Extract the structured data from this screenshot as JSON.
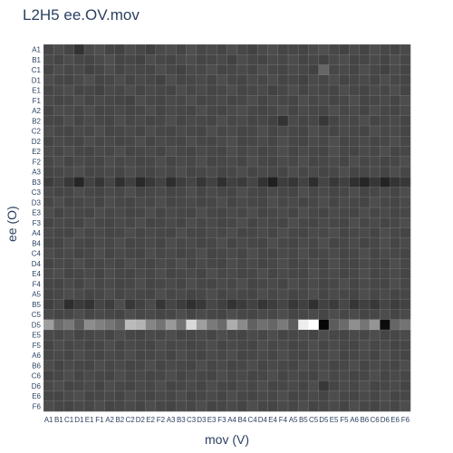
{
  "chart_data": {
    "type": "heatmap",
    "title": "L2H5 ee.OV.mov",
    "xlabel": "mov (V)",
    "ylabel": "ee (O)",
    "labels": [
      "A1",
      "B1",
      "C1",
      "D1",
      "E1",
      "F1",
      "A2",
      "B2",
      "C2",
      "D2",
      "E2",
      "F2",
      "A3",
      "B3",
      "C3",
      "D3",
      "E3",
      "F3",
      "A4",
      "B4",
      "C4",
      "D4",
      "E4",
      "F4",
      "A5",
      "B5",
      "C5",
      "D5",
      "E5",
      "F5",
      "A6",
      "B6",
      "C6",
      "D6",
      "E6",
      "F6"
    ],
    "value_range": [
      0,
      1
    ],
    "colorscale": "greys (black = 0, white = 1)",
    "grid": true,
    "values": [
      [
        0.28,
        0.3,
        0.27,
        0.2,
        0.29,
        0.31,
        0.27,
        0.26,
        0.3,
        0.28,
        0.25,
        0.29,
        0.3,
        0.27,
        0.31,
        0.28,
        0.29,
        0.27,
        0.3,
        0.28,
        0.26,
        0.29,
        0.3,
        0.27,
        0.28,
        0.27,
        0.29,
        0.31,
        0.28,
        0.26,
        0.29,
        0.27,
        0.3,
        0.28,
        0.27,
        0.29
      ],
      [
        0.29,
        0.27,
        0.3,
        0.28,
        0.27,
        0.29,
        0.31,
        0.27,
        0.28,
        0.26,
        0.3,
        0.28,
        0.27,
        0.29,
        0.3,
        0.27,
        0.28,
        0.29,
        0.26,
        0.3,
        0.28,
        0.27,
        0.29,
        0.28,
        0.3,
        0.27,
        0.28,
        0.26,
        0.29,
        0.3,
        0.27,
        0.28,
        0.29,
        0.27,
        0.3,
        0.28
      ],
      [
        0.27,
        0.3,
        0.28,
        0.29,
        0.26,
        0.28,
        0.3,
        0.27,
        0.29,
        0.28,
        0.27,
        0.3,
        0.28,
        0.26,
        0.29,
        0.28,
        0.3,
        0.27,
        0.28,
        0.29,
        0.27,
        0.3,
        0.28,
        0.27,
        0.29,
        0.28,
        0.26,
        0.4,
        0.28,
        0.29,
        0.27,
        0.3,
        0.28,
        0.26,
        0.29,
        0.27
      ],
      [
        0.3,
        0.28,
        0.27,
        0.29,
        0.31,
        0.27,
        0.28,
        0.3,
        0.27,
        0.29,
        0.28,
        0.26,
        0.3,
        0.27,
        0.28,
        0.29,
        0.27,
        0.3,
        0.28,
        0.27,
        0.29,
        0.28,
        0.3,
        0.27,
        0.28,
        0.26,
        0.29,
        0.28,
        0.3,
        0.27,
        0.28,
        0.29,
        0.27,
        0.3,
        0.28,
        0.27
      ],
      [
        0.28,
        0.29,
        0.3,
        0.27,
        0.28,
        0.26,
        0.29,
        0.28,
        0.3,
        0.27,
        0.29,
        0.28,
        0.27,
        0.3,
        0.28,
        0.29,
        0.27,
        0.28,
        0.3,
        0.27,
        0.28,
        0.29,
        0.26,
        0.28,
        0.3,
        0.27,
        0.29,
        0.28,
        0.27,
        0.3,
        0.28,
        0.27,
        0.29,
        0.28,
        0.3,
        0.27
      ],
      [
        0.29,
        0.27,
        0.28,
        0.3,
        0.27,
        0.29,
        0.28,
        0.27,
        0.26,
        0.3,
        0.28,
        0.27,
        0.29,
        0.28,
        0.3,
        0.27,
        0.28,
        0.29,
        0.27,
        0.28,
        0.3,
        0.27,
        0.29,
        0.28,
        0.27,
        0.3,
        0.28,
        0.29,
        0.27,
        0.28,
        0.3,
        0.27,
        0.28,
        0.29,
        0.27,
        0.3
      ],
      [
        0.27,
        0.3,
        0.29,
        0.28,
        0.3,
        0.27,
        0.28,
        0.29,
        0.27,
        0.28,
        0.3,
        0.27,
        0.29,
        0.28,
        0.27,
        0.3,
        0.28,
        0.27,
        0.29,
        0.3,
        0.28,
        0.27,
        0.28,
        0.3,
        0.27,
        0.29,
        0.28,
        0.27,
        0.3,
        0.28,
        0.29,
        0.27,
        0.3,
        0.28,
        0.27,
        0.29
      ],
      [
        0.28,
        0.27,
        0.3,
        0.27,
        0.29,
        0.28,
        0.27,
        0.3,
        0.28,
        0.29,
        0.27,
        0.28,
        0.3,
        0.27,
        0.29,
        0.28,
        0.27,
        0.3,
        0.28,
        0.29,
        0.27,
        0.28,
        0.26,
        0.2,
        0.29,
        0.27,
        0.28,
        0.22,
        0.27,
        0.29,
        0.28,
        0.3,
        0.27,
        0.28,
        0.29,
        0.27
      ],
      [
        0.3,
        0.28,
        0.27,
        0.29,
        0.28,
        0.3,
        0.27,
        0.28,
        0.29,
        0.27,
        0.3,
        0.28,
        0.27,
        0.29,
        0.28,
        0.27,
        0.3,
        0.28,
        0.29,
        0.27,
        0.28,
        0.3,
        0.27,
        0.29,
        0.28,
        0.27,
        0.3,
        0.28,
        0.27,
        0.29,
        0.28,
        0.27,
        0.3,
        0.28,
        0.29,
        0.27
      ],
      [
        0.27,
        0.29,
        0.28,
        0.27,
        0.3,
        0.28,
        0.29,
        0.27,
        0.28,
        0.3,
        0.27,
        0.29,
        0.28,
        0.27,
        0.3,
        0.28,
        0.27,
        0.29,
        0.3,
        0.27,
        0.28,
        0.29,
        0.27,
        0.3,
        0.28,
        0.27,
        0.29,
        0.28,
        0.3,
        0.27,
        0.28,
        0.29,
        0.27,
        0.28,
        0.3,
        0.28
      ],
      [
        0.29,
        0.28,
        0.3,
        0.28,
        0.27,
        0.29,
        0.28,
        0.3,
        0.27,
        0.28,
        0.29,
        0.27,
        0.3,
        0.28,
        0.27,
        0.29,
        0.28,
        0.27,
        0.3,
        0.28,
        0.29,
        0.27,
        0.28,
        0.3,
        0.27,
        0.29,
        0.28,
        0.27,
        0.3,
        0.28,
        0.27,
        0.29,
        0.28,
        0.3,
        0.27,
        0.28
      ],
      [
        0.28,
        0.3,
        0.27,
        0.29,
        0.28,
        0.27,
        0.3,
        0.28,
        0.29,
        0.27,
        0.28,
        0.3,
        0.27,
        0.29,
        0.28,
        0.3,
        0.27,
        0.28,
        0.29,
        0.27,
        0.3,
        0.28,
        0.27,
        0.29,
        0.28,
        0.3,
        0.27,
        0.28,
        0.29,
        0.27,
        0.3,
        0.28,
        0.29,
        0.27,
        0.28,
        0.3
      ],
      [
        0.27,
        0.28,
        0.29,
        0.3,
        0.27,
        0.28,
        0.29,
        0.27,
        0.3,
        0.28,
        0.27,
        0.29,
        0.28,
        0.3,
        0.27,
        0.28,
        0.29,
        0.27,
        0.28,
        0.3,
        0.27,
        0.29,
        0.28,
        0.27,
        0.3,
        0.28,
        0.29,
        0.27,
        0.28,
        0.3,
        0.27,
        0.28,
        0.29,
        0.27,
        0.3,
        0.28
      ],
      [
        0.24,
        0.27,
        0.22,
        0.15,
        0.26,
        0.21,
        0.27,
        0.19,
        0.25,
        0.16,
        0.22,
        0.26,
        0.18,
        0.24,
        0.27,
        0.21,
        0.26,
        0.19,
        0.25,
        0.23,
        0.27,
        0.2,
        0.12,
        0.24,
        0.21,
        0.26,
        0.18,
        0.27,
        0.22,
        0.25,
        0.19,
        0.15,
        0.21,
        0.14,
        0.2,
        0.22
      ],
      [
        0.29,
        0.27,
        0.28,
        0.3,
        0.28,
        0.27,
        0.29,
        0.28,
        0.3,
        0.27,
        0.28,
        0.29,
        0.27,
        0.28,
        0.3,
        0.27,
        0.29,
        0.28,
        0.27,
        0.3,
        0.28,
        0.27,
        0.29,
        0.28,
        0.27,
        0.3,
        0.28,
        0.29,
        0.27,
        0.28,
        0.3,
        0.27,
        0.28,
        0.29,
        0.27,
        0.3
      ],
      [
        0.28,
        0.3,
        0.27,
        0.28,
        0.29,
        0.27,
        0.3,
        0.28,
        0.27,
        0.29,
        0.28,
        0.3,
        0.27,
        0.28,
        0.29,
        0.27,
        0.28,
        0.3,
        0.27,
        0.29,
        0.28,
        0.27,
        0.3,
        0.28,
        0.29,
        0.27,
        0.28,
        0.3,
        0.27,
        0.29,
        0.28,
        0.27,
        0.3,
        0.28,
        0.27,
        0.29
      ],
      [
        0.3,
        0.27,
        0.29,
        0.28,
        0.27,
        0.3,
        0.28,
        0.29,
        0.27,
        0.28,
        0.3,
        0.27,
        0.29,
        0.28,
        0.27,
        0.3,
        0.28,
        0.27,
        0.29,
        0.28,
        0.3,
        0.27,
        0.28,
        0.29,
        0.27,
        0.3,
        0.28,
        0.27,
        0.29,
        0.28,
        0.27,
        0.3,
        0.28,
        0.29,
        0.27,
        0.28
      ],
      [
        0.27,
        0.29,
        0.28,
        0.27,
        0.3,
        0.28,
        0.27,
        0.29,
        0.28,
        0.3,
        0.27,
        0.28,
        0.29,
        0.27,
        0.3,
        0.28,
        0.29,
        0.27,
        0.28,
        0.3,
        0.27,
        0.29,
        0.28,
        0.27,
        0.3,
        0.28,
        0.27,
        0.29,
        0.28,
        0.27,
        0.3,
        0.28,
        0.29,
        0.27,
        0.28,
        0.3
      ],
      [
        0.29,
        0.28,
        0.27,
        0.3,
        0.28,
        0.29,
        0.27,
        0.28,
        0.3,
        0.27,
        0.29,
        0.28,
        0.27,
        0.3,
        0.28,
        0.27,
        0.29,
        0.28,
        0.3,
        0.27,
        0.28,
        0.29,
        0.27,
        0.3,
        0.28,
        0.27,
        0.29,
        0.28,
        0.3,
        0.27,
        0.28,
        0.29,
        0.27,
        0.3,
        0.28,
        0.27
      ],
      [
        0.28,
        0.27,
        0.3,
        0.28,
        0.27,
        0.29,
        0.28,
        0.3,
        0.27,
        0.28,
        0.29,
        0.27,
        0.3,
        0.28,
        0.29,
        0.27,
        0.28,
        0.3,
        0.27,
        0.29,
        0.28,
        0.27,
        0.3,
        0.28,
        0.27,
        0.29,
        0.28,
        0.3,
        0.27,
        0.28,
        0.29,
        0.27,
        0.28,
        0.3,
        0.27,
        0.29
      ],
      [
        0.3,
        0.28,
        0.29,
        0.27,
        0.28,
        0.3,
        0.27,
        0.29,
        0.28,
        0.27,
        0.3,
        0.28,
        0.29,
        0.27,
        0.28,
        0.3,
        0.27,
        0.28,
        0.29,
        0.27,
        0.3,
        0.28,
        0.27,
        0.29,
        0.28,
        0.3,
        0.27,
        0.28,
        0.29,
        0.27,
        0.28,
        0.3,
        0.27,
        0.29,
        0.28,
        0.27
      ],
      [
        0.27,
        0.29,
        0.28,
        0.3,
        0.27,
        0.28,
        0.29,
        0.27,
        0.3,
        0.28,
        0.27,
        0.29,
        0.28,
        0.3,
        0.27,
        0.29,
        0.28,
        0.27,
        0.3,
        0.28,
        0.29,
        0.27,
        0.28,
        0.3,
        0.27,
        0.28,
        0.29,
        0.27,
        0.3,
        0.28,
        0.27,
        0.29,
        0.28,
        0.27,
        0.3,
        0.28
      ],
      [
        0.29,
        0.3,
        0.27,
        0.28,
        0.29,
        0.27,
        0.3,
        0.28,
        0.27,
        0.29,
        0.28,
        0.3,
        0.27,
        0.28,
        0.29,
        0.27,
        0.3,
        0.28,
        0.29,
        0.27,
        0.28,
        0.3,
        0.27,
        0.29,
        0.28,
        0.27,
        0.3,
        0.28,
        0.29,
        0.27,
        0.28,
        0.3,
        0.27,
        0.28,
        0.29,
        0.27
      ],
      [
        0.28,
        0.27,
        0.29,
        0.27,
        0.3,
        0.28,
        0.29,
        0.27,
        0.28,
        0.3,
        0.27,
        0.28,
        0.29,
        0.27,
        0.3,
        0.28,
        0.27,
        0.29,
        0.28,
        0.3,
        0.27,
        0.28,
        0.29,
        0.27,
        0.3,
        0.28,
        0.29,
        0.27,
        0.28,
        0.3,
        0.27,
        0.29,
        0.28,
        0.27,
        0.3,
        0.28
      ],
      [
        0.27,
        0.28,
        0.3,
        0.29,
        0.27,
        0.28,
        0.3,
        0.27,
        0.29,
        0.28,
        0.27,
        0.3,
        0.28,
        0.29,
        0.27,
        0.28,
        0.3,
        0.27,
        0.29,
        0.28,
        0.27,
        0.3,
        0.28,
        0.29,
        0.27,
        0.28,
        0.3,
        0.27,
        0.29,
        0.28,
        0.27,
        0.3,
        0.28,
        0.29,
        0.27,
        0.28
      ],
      [
        0.25,
        0.28,
        0.18,
        0.23,
        0.2,
        0.27,
        0.24,
        0.3,
        0.22,
        0.26,
        0.29,
        0.21,
        0.27,
        0.24,
        0.19,
        0.22,
        0.28,
        0.25,
        0.2,
        0.23,
        0.26,
        0.21,
        0.24,
        0.27,
        0.22,
        0.25,
        0.19,
        0.26,
        0.23,
        0.28,
        0.21,
        0.25,
        0.22,
        0.27,
        0.24,
        0.26
      ],
      [
        0.29,
        0.27,
        0.28,
        0.3,
        0.27,
        0.29,
        0.28,
        0.27,
        0.3,
        0.28,
        0.29,
        0.27,
        0.28,
        0.3,
        0.27,
        0.29,
        0.28,
        0.27,
        0.3,
        0.28,
        0.27,
        0.29,
        0.28,
        0.3,
        0.27,
        0.28,
        0.29,
        0.27,
        0.3,
        0.28,
        0.29,
        0.27,
        0.28,
        0.3,
        0.27,
        0.29
      ],
      [
        0.62,
        0.42,
        0.47,
        0.36,
        0.55,
        0.5,
        0.46,
        0.4,
        0.73,
        0.7,
        0.52,
        0.45,
        0.6,
        0.45,
        0.85,
        0.62,
        0.48,
        0.42,
        0.68,
        0.54,
        0.38,
        0.44,
        0.4,
        0.48,
        0.36,
        0.93,
        1.0,
        0.02,
        0.36,
        0.42,
        0.56,
        0.46,
        0.58,
        0.05,
        0.4,
        0.45
      ],
      [
        0.29,
        0.28,
        0.3,
        0.27,
        0.28,
        0.29,
        0.27,
        0.3,
        0.28,
        0.27,
        0.29,
        0.28,
        0.3,
        0.27,
        0.28,
        0.29,
        0.27,
        0.3,
        0.28,
        0.27,
        0.29,
        0.28,
        0.3,
        0.27,
        0.28,
        0.29,
        0.27,
        0.3,
        0.28,
        0.27,
        0.29,
        0.28,
        0.3,
        0.27,
        0.28,
        0.29
      ],
      [
        0.27,
        0.3,
        0.28,
        0.29,
        0.27,
        0.28,
        0.3,
        0.27,
        0.29,
        0.28,
        0.27,
        0.3,
        0.28,
        0.29,
        0.27,
        0.28,
        0.3,
        0.27,
        0.29,
        0.28,
        0.27,
        0.3,
        0.28,
        0.29,
        0.27,
        0.28,
        0.3,
        0.27,
        0.29,
        0.28,
        0.27,
        0.3,
        0.28,
        0.29,
        0.27,
        0.28
      ],
      [
        0.28,
        0.29,
        0.27,
        0.3,
        0.28,
        0.27,
        0.29,
        0.28,
        0.3,
        0.27,
        0.28,
        0.29,
        0.27,
        0.3,
        0.28,
        0.27,
        0.29,
        0.28,
        0.3,
        0.27,
        0.28,
        0.29,
        0.27,
        0.3,
        0.28,
        0.27,
        0.29,
        0.28,
        0.3,
        0.27,
        0.28,
        0.29,
        0.27,
        0.3,
        0.28,
        0.27
      ],
      [
        0.3,
        0.27,
        0.29,
        0.28,
        0.27,
        0.3,
        0.28,
        0.29,
        0.27,
        0.28,
        0.3,
        0.27,
        0.29,
        0.28,
        0.27,
        0.3,
        0.28,
        0.29,
        0.27,
        0.28,
        0.3,
        0.27,
        0.29,
        0.28,
        0.27,
        0.3,
        0.28,
        0.29,
        0.27,
        0.28,
        0.3,
        0.27,
        0.29,
        0.28,
        0.27,
        0.3
      ],
      [
        0.27,
        0.28,
        0.3,
        0.27,
        0.29,
        0.28,
        0.27,
        0.3,
        0.28,
        0.29,
        0.27,
        0.28,
        0.3,
        0.27,
        0.29,
        0.28,
        0.27,
        0.3,
        0.28,
        0.29,
        0.27,
        0.28,
        0.3,
        0.27,
        0.29,
        0.28,
        0.27,
        0.3,
        0.28,
        0.29,
        0.27,
        0.28,
        0.3,
        0.27,
        0.29,
        0.28
      ],
      [
        0.29,
        0.3,
        0.27,
        0.28,
        0.29,
        0.27,
        0.3,
        0.28,
        0.27,
        0.29,
        0.28,
        0.3,
        0.27,
        0.28,
        0.29,
        0.27,
        0.3,
        0.28,
        0.27,
        0.29,
        0.28,
        0.3,
        0.27,
        0.28,
        0.29,
        0.27,
        0.3,
        0.22,
        0.27,
        0.29,
        0.28,
        0.3,
        0.27,
        0.28,
        0.29,
        0.27
      ],
      [
        0.28,
        0.27,
        0.29,
        0.3,
        0.27,
        0.28,
        0.29,
        0.27,
        0.3,
        0.28,
        0.27,
        0.29,
        0.28,
        0.3,
        0.27,
        0.28,
        0.29,
        0.27,
        0.3,
        0.28,
        0.27,
        0.29,
        0.28,
        0.3,
        0.27,
        0.28,
        0.29,
        0.27,
        0.3,
        0.28,
        0.27,
        0.29,
        0.28,
        0.3,
        0.27,
        0.28
      ],
      [
        0.3,
        0.28,
        0.27,
        0.29,
        0.28,
        0.3,
        0.27,
        0.28,
        0.29,
        0.27,
        0.3,
        0.28,
        0.27,
        0.29,
        0.28,
        0.3,
        0.27,
        0.28,
        0.29,
        0.27,
        0.3,
        0.28,
        0.27,
        0.29,
        0.28,
        0.3,
        0.27,
        0.28,
        0.29,
        0.27,
        0.3,
        0.28,
        0.27,
        0.29,
        0.28,
        0.3
      ]
    ]
  }
}
